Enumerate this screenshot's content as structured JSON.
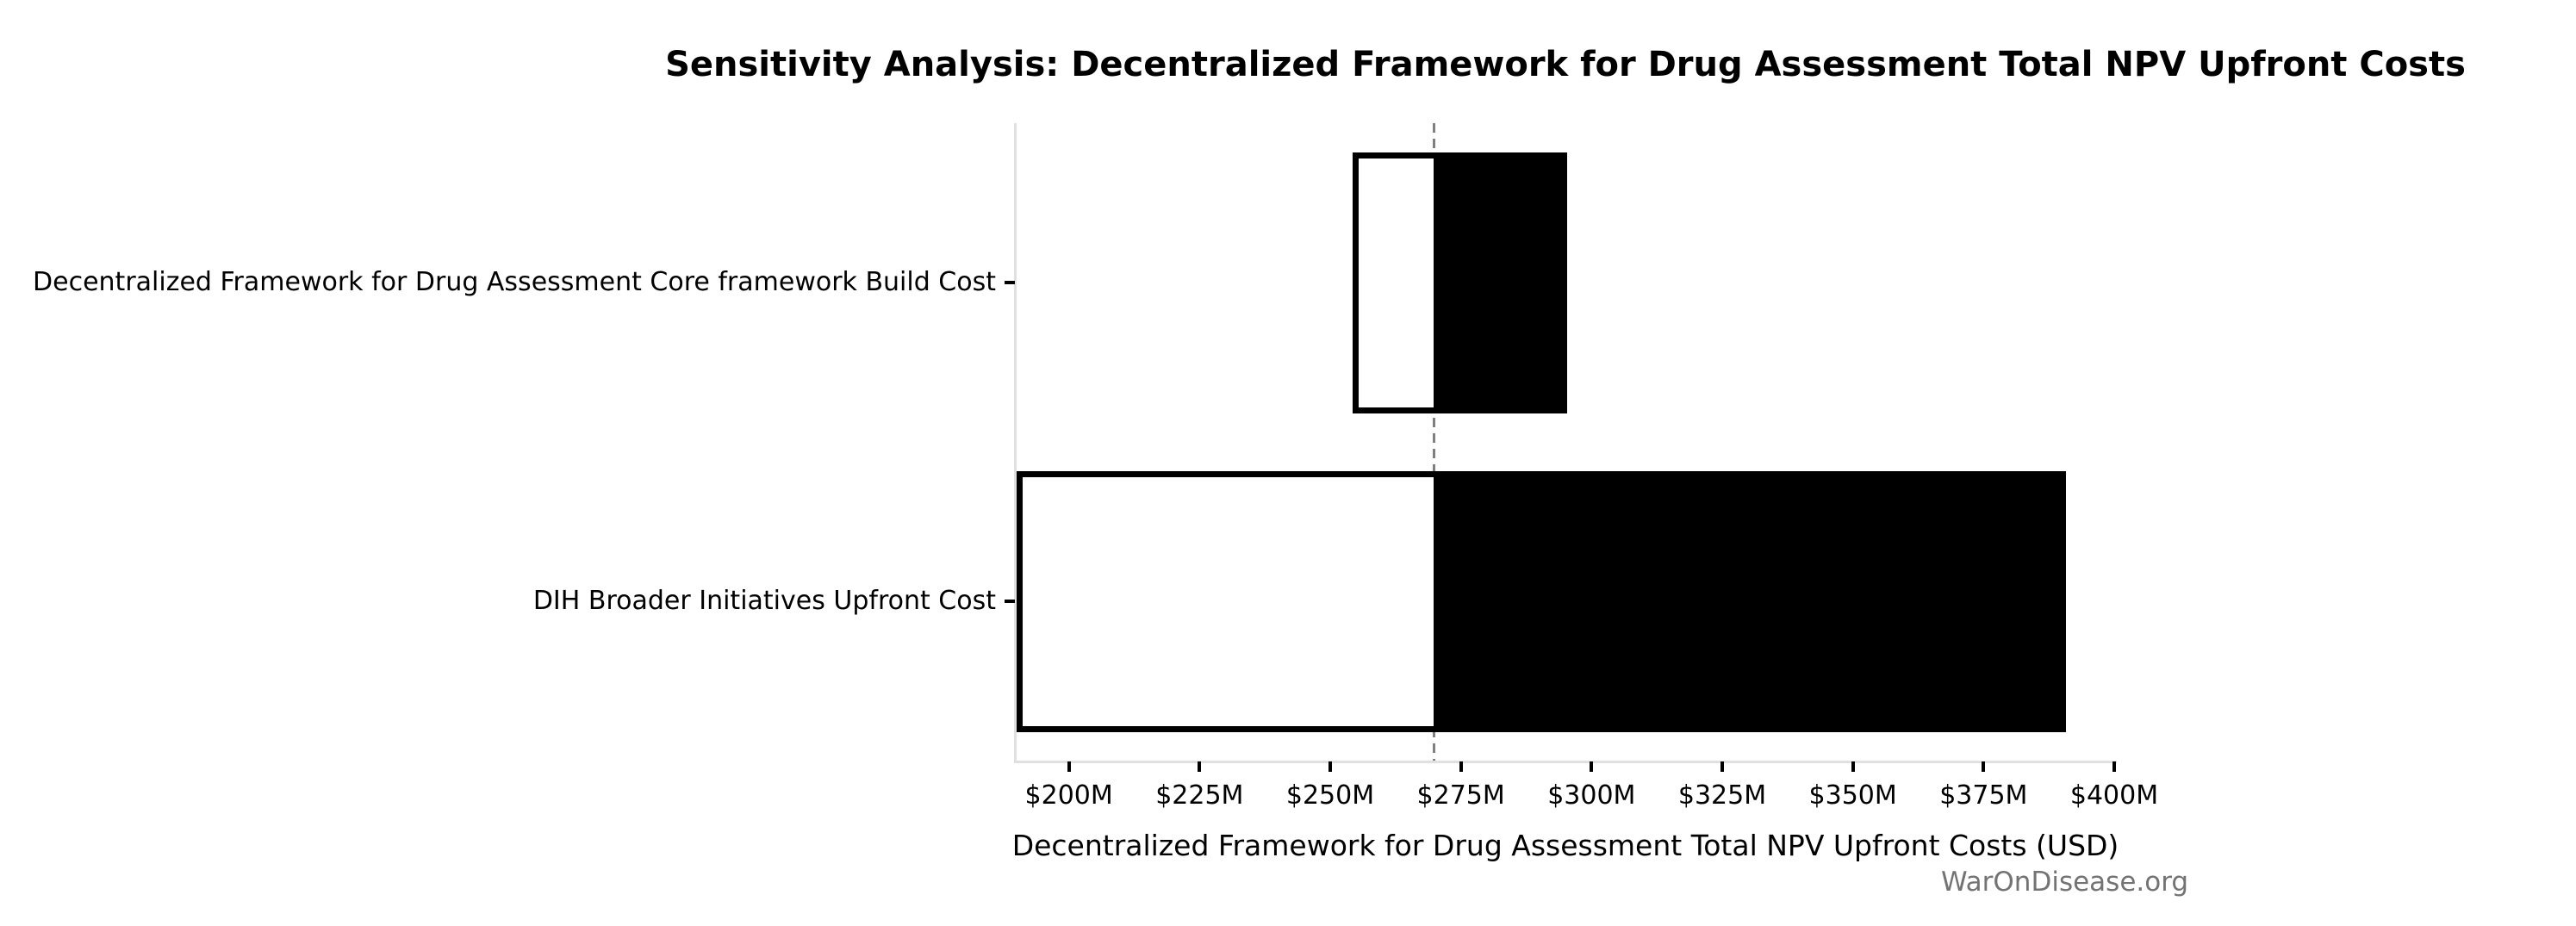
{
  "title": "Sensitivity Analysis: Decentralized Framework for Drug Assessment Total NPV Upfront Costs",
  "watermark": "WarOnDisease.org",
  "chart_data": {
    "type": "bar",
    "subtype": "tornado-sensitivity",
    "orientation": "horizontal",
    "title": "Sensitivity Analysis: Decentralized Framework for Drug Assessment Total NPV Upfront Costs",
    "xlabel": "Decentralized Framework for Drug Assessment Total NPV Upfront Costs (USD)",
    "ylabel": "",
    "unit": "USD millions",
    "xlim": [
      190,
      400
    ],
    "baseline_value": 269.8,
    "grid": false,
    "legend": null,
    "categories": [
      "Decentralized Framework for Drug Assessment Core framework Build Cost",
      "DIH Broader Initiatives Upfront Cost"
    ],
    "bars": [
      {
        "category": "Decentralized Framework for Drug Assessment Core framework Build Cost",
        "low": 254.3,
        "high": 295.4
      },
      {
        "category": "DIH Broader Initiatives Upfront Cost",
        "low": 190.0,
        "high": 390.7
      }
    ],
    "x_ticks": [
      {
        "value": 200,
        "label": "$200M"
      },
      {
        "value": 225,
        "label": "$225M"
      },
      {
        "value": 250,
        "label": "$250M"
      },
      {
        "value": 275,
        "label": "$275M"
      },
      {
        "value": 300,
        "label": "$300M"
      },
      {
        "value": 325,
        "label": "$325M"
      },
      {
        "value": 350,
        "label": "$350M"
      },
      {
        "value": 375,
        "label": "$375M"
      },
      {
        "value": 400,
        "label": "$400M"
      }
    ],
    "bar_height_fraction": 0.82,
    "colors": {
      "low_fill": "#ffffff",
      "high_fill": "#000000",
      "bar_edge": "#000000",
      "baseline_line": "#7f7f7f",
      "spine": "#e0e0e0",
      "tick": "#000000",
      "text": "#000000",
      "watermark": "#737373"
    }
  }
}
